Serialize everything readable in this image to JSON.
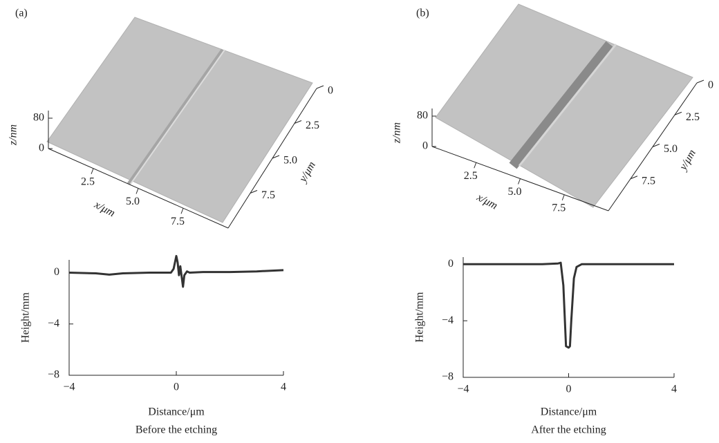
{
  "chart_data": [
    {
      "type": "surface",
      "panel_label": "(a)",
      "zlabel": "z/nm",
      "xlabel": "x/μm",
      "ylabel": "y/μm",
      "xlim": [
        0,
        10
      ],
      "ylim": [
        0,
        10
      ],
      "zlim": [
        0,
        100
      ],
      "xticks": [
        2.5,
        {
          "value": 5,
          "label": "5.0"
        },
        7.5
      ],
      "yticks": [
        0,
        2.5,
        {
          "value": 5,
          "label": "5.0"
        },
        7.5
      ],
      "zticks": [
        0,
        80
      ]
    },
    {
      "type": "line",
      "ylabel": "Height/mm",
      "xlabel": "Distance/μm",
      "caption": "Before the etching",
      "x": [
        -4,
        -3,
        -2.5,
        -2,
        -1,
        -0.5,
        -0.2,
        -0.1,
        0,
        0.05,
        0.1,
        0.15,
        0.2,
        0.25,
        0.3,
        0.4,
        0.5,
        1,
        2,
        3,
        4
      ],
      "values": [
        0,
        -0.05,
        -0.15,
        -0.05,
        0,
        0,
        0,
        0.3,
        1.3,
        0.8,
        -0.2,
        0.5,
        -0.3,
        -1.1,
        -0.2,
        0.1,
        0,
        0.05,
        0.05,
        0.1,
        0.2
      ],
      "color": "#333333",
      "xlim": [
        -4,
        4
      ],
      "ylim": [
        -8,
        1
      ],
      "xticks": [
        {
          "value": -4,
          "label": "−4"
        },
        0,
        4
      ],
      "yticks": [
        {
          "value": -8,
          "label": "−8"
        },
        {
          "value": -4,
          "label": "−4"
        },
        0
      ]
    },
    {
      "type": "surface",
      "panel_label": "(b)",
      "zlabel": "z/nm",
      "xlabel": "x/μm",
      "ylabel": "y/μm",
      "xlim": [
        0,
        10
      ],
      "ylim": [
        0,
        10
      ],
      "zlim": [
        0,
        100
      ],
      "xticks": [
        2.5,
        {
          "value": 5,
          "label": "5.0"
        },
        7.5
      ],
      "yticks": [
        0,
        2.5,
        {
          "value": 5,
          "label": "5.0"
        },
        7.5
      ],
      "zticks": [
        0,
        80
      ]
    },
    {
      "type": "line",
      "ylabel": "Height/mm",
      "xlabel": "Distance/μm",
      "caption": "After the etching",
      "x": [
        -4,
        -1,
        -0.4,
        -0.3,
        -0.2,
        -0.1,
        0,
        0.05,
        0.1,
        0.2,
        0.3,
        0.5,
        1,
        4
      ],
      "values": [
        0,
        0,
        0.05,
        0.1,
        -1.5,
        -5.8,
        -5.9,
        -5.8,
        -4,
        -1,
        -0.2,
        0,
        0,
        0
      ],
      "color": "#333333",
      "xlim": [
        -4,
        4
      ],
      "ylim": [
        -8,
        0.5
      ],
      "xticks": [
        {
          "value": -4,
          "label": "−4"
        },
        0,
        4
      ],
      "yticks": [
        {
          "value": -8,
          "label": "−8"
        },
        {
          "value": -4,
          "label": "−4"
        },
        0
      ]
    }
  ]
}
